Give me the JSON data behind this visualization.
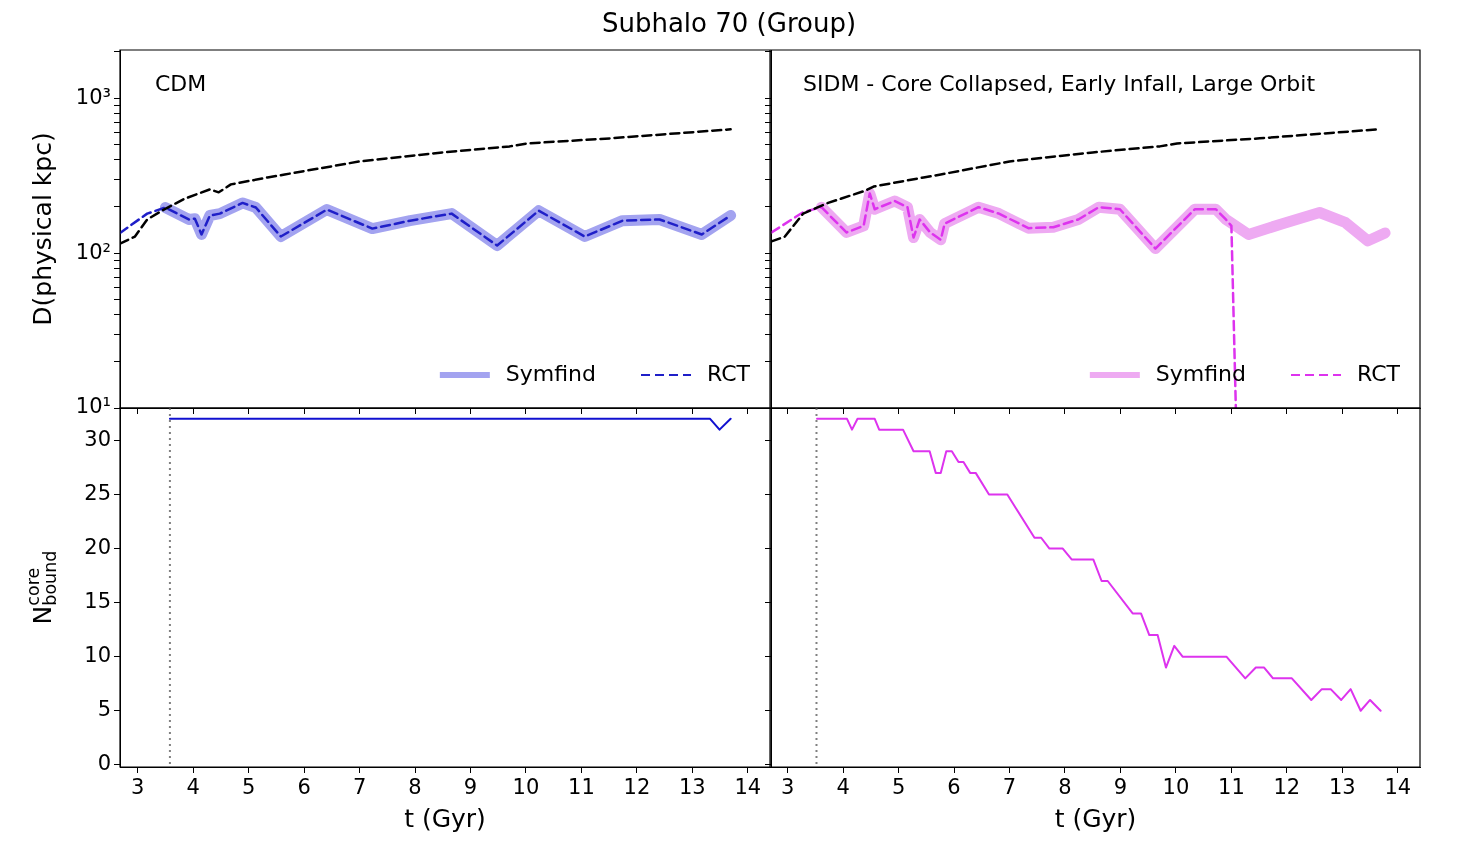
{
  "chart_data": [
    {
      "type": "line",
      "title": "Subhalo 70 (Group)",
      "ylabel": "D(physical kpc)",
      "annotations": [
        "CDM"
      ],
      "log": "y",
      "legend": "bottom right",
      "tick_labels": "y",
      "xlim": [
        2.68,
        14.4
      ],
      "xticks": [
        3,
        4,
        5,
        6,
        7,
        8,
        9,
        10,
        11,
        12,
        13,
        14
      ],
      "ylim": [
        10,
        2050
      ],
      "yticks": [
        {
          "value": 10,
          "label": "10¹"
        },
        {
          "value": 20,
          "label": null
        },
        {
          "value": 30,
          "label": null
        },
        {
          "value": 40,
          "label": null
        },
        {
          "value": 50,
          "label": null
        },
        {
          "value": 60,
          "label": null
        },
        {
          "value": 70,
          "label": null
        },
        {
          "value": 80,
          "label": null
        },
        {
          "value": 90,
          "label": null
        },
        {
          "value": 100,
          "label": "10²"
        },
        {
          "value": 200,
          "label": null
        },
        {
          "value": 300,
          "label": null
        },
        {
          "value": 400,
          "label": null
        },
        {
          "value": 500,
          "label": null
        },
        {
          "value": 600,
          "label": null
        },
        {
          "value": 700,
          "label": null
        },
        {
          "value": 800,
          "label": null
        },
        {
          "value": 900,
          "label": null
        },
        {
          "value": 1000,
          "label": "10³"
        },
        {
          "value": 2000,
          "label": null
        }
      ],
      "series": [
        {
          "name": "Symfind",
          "color": "#a3a3f0",
          "line_style": "solid",
          "x": [
            3.5,
            3.92,
            4.03,
            4.15,
            4.3,
            4.48,
            4.89,
            5.13,
            5.58,
            6.41,
            7.23,
            7.91,
            8.66,
            9.48,
            10.23,
            11.06,
            11.74,
            12.41,
            13.17,
            13.69
          ],
          "values": [
            197,
            165,
            167,
            132,
            175,
            180,
            211,
            197,
            128,
            191,
            144,
            162,
            180,
            112,
            188,
            128,
            162,
            165,
            132,
            175
          ]
        },
        {
          "name": "RCT",
          "color": "#1f1fc8",
          "line_style": "dashed",
          "x": [
            2.68,
            3.17,
            3.5,
            3.92,
            4.03,
            4.15,
            4.3,
            4.48,
            4.89,
            5.13,
            5.58,
            6.41,
            7.23,
            7.91,
            8.66,
            9.48,
            10.23,
            11.06,
            11.74,
            12.41,
            13.17,
            13.69
          ],
          "values": [
            135,
            180,
            197,
            165,
            167,
            132,
            175,
            180,
            211,
            197,
            128,
            191,
            144,
            162,
            180,
            112,
            188,
            128,
            162,
            165,
            132,
            175
          ]
        },
        {
          "color": "#000000",
          "line_style": "dashed",
          "x": [
            2.68,
            2.95,
            3.17,
            3.47,
            3.85,
            4.3,
            4.46,
            4.68,
            5.34,
            5.65,
            7.0,
            8.5,
            9.71,
            10.02,
            11.51,
            13.69
          ],
          "values": [
            115,
            128,
            165,
            191,
            225,
            258,
            247,
            278,
            308,
            322,
            391,
            447,
            489,
            511,
            551,
            630
          ]
        }
      ]
    },
    {
      "type": "line",
      "annotations": [
        "SIDM - Core Collapsed, Early Infall, Large Orbit"
      ],
      "log": "y",
      "legend": "bottom right",
      "tick_labels": false,
      "xlim": [
        2.7,
        14.4
      ],
      "xticks": [
        3,
        4,
        5,
        6,
        7,
        8,
        9,
        10,
        11,
        12,
        13,
        14
      ],
      "ylim": [
        10,
        2050
      ],
      "yticks": [
        {
          "value": 10,
          "label": null
        },
        {
          "value": 20,
          "label": null
        },
        {
          "value": 30,
          "label": null
        },
        {
          "value": 40,
          "label": null
        },
        {
          "value": 50,
          "label": null
        },
        {
          "value": 60,
          "label": null
        },
        {
          "value": 70,
          "label": null
        },
        {
          "value": 80,
          "label": null
        },
        {
          "value": 90,
          "label": null
        },
        {
          "value": 100,
          "label": null
        },
        {
          "value": 200,
          "label": null
        },
        {
          "value": 300,
          "label": null
        },
        {
          "value": 400,
          "label": null
        },
        {
          "value": 500,
          "label": null
        },
        {
          "value": 600,
          "label": null
        },
        {
          "value": 700,
          "label": null
        },
        {
          "value": 800,
          "label": null
        },
        {
          "value": 900,
          "label": null
        },
        {
          "value": 1000,
          "label": null
        },
        {
          "value": 2000,
          "label": null
        }
      ],
      "series": [
        {
          "name": "Symfind",
          "color": "#eeaaf2",
          "line_style": "solid",
          "x": [
            3.61,
            4.06,
            4.37,
            4.48,
            4.57,
            4.93,
            5.16,
            5.27,
            5.38,
            5.57,
            5.76,
            5.83,
            6.44,
            6.81,
            7.34,
            7.79,
            8.24,
            8.61,
            8.99,
            9.63,
            10.34,
            10.72,
            10.9,
            11.31,
            11.92,
            12.59,
            13.05,
            13.46,
            13.77
          ],
          "values": [
            198,
            136,
            150,
            243,
            192,
            217,
            198,
            126,
            165,
            136,
            122,
            155,
            198,
            180,
            145,
            147,
            165,
            198,
            192,
            107,
            192,
            192,
            165,
            132,
            155,
            183,
            158,
            120,
            135
          ]
        },
        {
          "name": "RCT",
          "color": "#dd33ee",
          "line_style": "dashed",
          "x": [
            2.71,
            3.28,
            3.61,
            4.06,
            4.37,
            4.48,
            4.57,
            4.93,
            5.16,
            5.27,
            5.38,
            5.57,
            5.76,
            5.83,
            6.44,
            6.81,
            7.34,
            7.79,
            8.24,
            8.61,
            8.99,
            9.63,
            10.34,
            10.72,
            10.9,
            11.0,
            11.08
          ],
          "values": [
            136,
            184,
            198,
            136,
            150,
            243,
            192,
            217,
            198,
            126,
            165,
            136,
            122,
            155,
            198,
            180,
            145,
            147,
            165,
            198,
            192,
            107,
            192,
            192,
            165,
            150,
            10
          ]
        },
        {
          "color": "#000000",
          "line_style": "dashed",
          "x": [
            2.71,
            2.95,
            3.28,
            3.73,
            4.41,
            4.55,
            5.45,
            5.76,
            7.0,
            8.5,
            9.71,
            10.02,
            11.51,
            13.65
          ],
          "values": [
            119,
            128,
            180,
            211,
            254,
            269,
            308,
            322,
            391,
            447,
            489,
            511,
            551,
            630
          ]
        }
      ]
    },
    {
      "type": "line",
      "xlabel": "t (Gyr)",
      "ylabel": "N$^{core}$$_{bound}$",
      "xlim": [
        2.68,
        14.4
      ],
      "xticks": [
        3,
        4,
        5,
        6,
        7,
        8,
        9,
        10,
        11,
        12,
        13,
        14
      ],
      "ylim": [
        -0.2,
        33
      ],
      "yticks": [
        0,
        5,
        10,
        15,
        20,
        25,
        30
      ],
      "ref_lines": [
        {
          "axis": "x",
          "value": 3.58,
          "color": "#808080",
          "line_style": "dotted"
        }
      ],
      "series": [
        {
          "color": "#1010d0",
          "line_style": "solid",
          "x": [
            3.58,
            13.32,
            13.49,
            13.69
          ],
          "values": [
            32,
            32,
            31,
            32
          ]
        }
      ]
    },
    {
      "type": "line",
      "xlabel": "t (Gyr)",
      "tick_labels": "x",
      "xlim": [
        2.7,
        14.4
      ],
      "xticks": [
        3,
        4,
        5,
        6,
        7,
        8,
        9,
        10,
        11,
        12,
        13,
        14
      ],
      "ylim": [
        -0.2,
        33
      ],
      "yticks": [
        0,
        5,
        10,
        15,
        20,
        25,
        30
      ],
      "ref_lines": [
        {
          "axis": "x",
          "value": 3.52,
          "color": "#808080",
          "line_style": "dotted"
        }
      ],
      "series": [
        {
          "color": "#dd33ee",
          "line_style": "solid",
          "x": [
            3.53,
            4.07,
            4.16,
            4.26,
            4.57,
            4.65,
            5.08,
            5.27,
            5.56,
            5.67,
            5.76,
            5.86,
            5.96,
            6.08,
            6.17,
            6.29,
            6.39,
            6.63,
            6.96,
            7.45,
            7.57,
            7.72,
            7.96,
            8.12,
            8.51,
            8.66,
            8.77,
            9.22,
            9.37,
            9.52,
            9.67,
            9.82,
            9.97,
            10.12,
            10.91,
            11.25,
            11.44,
            11.59,
            11.75,
            12.09,
            12.44,
            12.63,
            12.79,
            12.98,
            13.15,
            13.33,
            13.5,
            13.69
          ],
          "values": [
            32,
            32,
            31,
            32,
            32,
            31,
            31,
            29,
            29,
            27,
            27,
            29,
            29,
            28,
            28,
            27,
            27,
            25,
            25,
            21,
            21,
            20,
            20,
            19,
            19,
            17,
            17,
            14,
            14,
            12,
            12,
            9,
            11,
            10,
            10,
            8,
            9,
            9,
            8,
            8,
            6,
            7,
            7,
            6,
            7,
            5,
            6,
            5
          ]
        }
      ]
    }
  ]
}
